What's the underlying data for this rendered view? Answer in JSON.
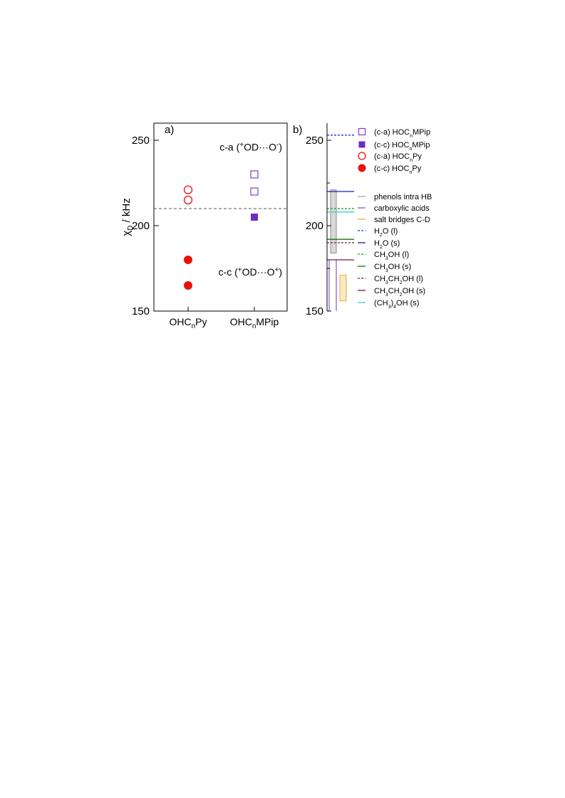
{
  "chart_data": [
    {
      "type": "scatter",
      "panel": "a)",
      "ylabel_main": "χ",
      "ylabel_sub": "D",
      "ylabel_tail": " / kHz",
      "ylim": [
        150,
        260
      ],
      "yticks": [
        150,
        200,
        250
      ],
      "categories": [
        "OHCnPy",
        "OHCnMPip"
      ],
      "category_labels": [
        {
          "main": "OHC",
          "sub": "n",
          "tail": "Py"
        },
        {
          "main": "OHC",
          "sub": "n",
          "tail": "MPip"
        }
      ],
      "reference_line": 210,
      "series": [
        {
          "name": "(c-a) HOCnPy",
          "category": 0,
          "marker": "open-circle",
          "color": "#e8120c",
          "values": [
            215,
            221
          ]
        },
        {
          "name": "(c-c) HOCnPy",
          "category": 0,
          "marker": "filled-circle",
          "color": "#e8120c",
          "values": [
            165,
            180
          ]
        },
        {
          "name": "(c-a) HOCnMPip",
          "category": 1,
          "marker": "open-square",
          "color": "#7d3fc6",
          "values": [
            220,
            230
          ]
        },
        {
          "name": "(c-c) HOCnMPip",
          "category": 1,
          "marker": "filled-square",
          "color": "#6e2cc0",
          "values": [
            205
          ]
        }
      ],
      "annotations": [
        {
          "pre": "c-a (",
          "sup1": "+",
          "mid": "OD···O",
          "sup2": "-",
          "post": ")",
          "at_value": 246
        },
        {
          "pre": "c-c (",
          "sup1": "+",
          "mid": "OD···O",
          "sup2": "+",
          "post": ")",
          "at_value": 173
        }
      ],
      "grid": false
    },
    {
      "type": "reference-ranges",
      "panel": "b)",
      "ylim": [
        150,
        260
      ],
      "yticks": [
        150,
        200,
        250
      ],
      "ranges": [
        {
          "name": "phenols intra HB",
          "low": 184,
          "high": 221,
          "fill": "#d9d9d9",
          "stroke": "#8a8a8a",
          "style": "box"
        },
        {
          "name": "carboxylic acids",
          "low": 150,
          "high": 180,
          "color": "#8a55d6",
          "style": "lines"
        },
        {
          "name": "salt bridges C-D",
          "low": 156,
          "high": 171,
          "fill": "#fbe8c4",
          "stroke": "#eea93b",
          "style": "box"
        }
      ],
      "lines": [
        {
          "name": "H2O (l)",
          "value": 253,
          "color": "#1f2fd6",
          "dash": true
        },
        {
          "name": "H2O (s)",
          "value": 220,
          "color": "#1a1ab5",
          "dash": false
        },
        {
          "name": "CH3OH (l)",
          "value": 210,
          "color": "#1a9a1a",
          "dash": true
        },
        {
          "name": "CH3OH (s)",
          "value": 192,
          "color": "#107a10",
          "dash": false
        },
        {
          "name": "CH3CH2OH (l)",
          "value": 190,
          "color": "#7a1a3a",
          "dash": true
        },
        {
          "name": "CH3CH2OH (s)",
          "value": 180,
          "color": "#6b1a4a",
          "dash": false
        },
        {
          "name": "(CH3)4OH (s)",
          "value": 208,
          "color": "#3fd0c8",
          "dash": false
        }
      ],
      "legend": [
        {
          "marker": "open-square",
          "color": "#7d3fc6",
          "parts": [
            [
              "(c-a) HOC",
              ""
            ],
            [
              "n",
              "sub"
            ],
            [
              "MPip",
              ""
            ]
          ]
        },
        {
          "marker": "filled-square",
          "color": "#6e2cc0",
          "parts": [
            [
              "(c-c) HOC",
              ""
            ],
            [
              "n",
              "sub"
            ],
            [
              "MPip",
              ""
            ]
          ]
        },
        {
          "marker": "open-circle",
          "color": "#e8120c",
          "parts": [
            [
              "(c-a) HOC",
              ""
            ],
            [
              "n",
              "sub"
            ],
            [
              "Py",
              ""
            ]
          ]
        },
        {
          "marker": "filled-circle",
          "color": "#e8120c",
          "parts": [
            [
              "(c-c) HOC",
              ""
            ],
            [
              "n",
              "sub"
            ],
            [
              "Py",
              ""
            ]
          ]
        },
        {
          "marker": "line",
          "color": "#a6a6a6",
          "dash": false,
          "parts": [
            [
              "phenols intra HB",
              ""
            ]
          ]
        },
        {
          "marker": "line",
          "color": "#8a55d6",
          "dash": false,
          "parts": [
            [
              "carboxylic acids",
              ""
            ]
          ]
        },
        {
          "marker": "line",
          "color": "#eea93b",
          "dash": false,
          "parts": [
            [
              "salt bridges C-D",
              ""
            ]
          ]
        },
        {
          "marker": "line",
          "color": "#1f2fd6",
          "dash": true,
          "parts": [
            [
              "H",
              ""
            ],
            [
              "2",
              "sub"
            ],
            [
              "O (l)",
              ""
            ]
          ]
        },
        {
          "marker": "line",
          "color": "#1a1ab5",
          "dash": false,
          "parts": [
            [
              "H",
              ""
            ],
            [
              "2",
              "sub"
            ],
            [
              "O (s)",
              ""
            ]
          ]
        },
        {
          "marker": "line",
          "color": "#1a9a1a",
          "dash": true,
          "parts": [
            [
              "CH",
              ""
            ],
            [
              "3",
              "sub"
            ],
            [
              "OH (l)",
              ""
            ]
          ]
        },
        {
          "marker": "line",
          "color": "#107a10",
          "dash": false,
          "parts": [
            [
              "CH",
              ""
            ],
            [
              "3",
              "sub"
            ],
            [
              "OH (s)",
              ""
            ]
          ]
        },
        {
          "marker": "line",
          "color": "#7a1a3a",
          "dash": true,
          "parts": [
            [
              "CH",
              ""
            ],
            [
              "3",
              "sub"
            ],
            [
              "CH",
              ""
            ],
            [
              "2",
              "sub"
            ],
            [
              "OH (l)",
              ""
            ]
          ]
        },
        {
          "marker": "line",
          "color": "#6b1a4a",
          "dash": false,
          "parts": [
            [
              "CH",
              ""
            ],
            [
              "3",
              "sub"
            ],
            [
              "CH",
              ""
            ],
            [
              "2",
              "sub"
            ],
            [
              "OH (s)",
              ""
            ]
          ]
        },
        {
          "marker": "line",
          "color": "#3fd0c8",
          "dash": false,
          "parts": [
            [
              "(CH",
              ""
            ],
            [
              "3",
              "sub"
            ],
            [
              ")",
              ""
            ],
            [
              "4",
              "sub"
            ],
            [
              "OH (s)",
              ""
            ]
          ]
        }
      ]
    }
  ]
}
